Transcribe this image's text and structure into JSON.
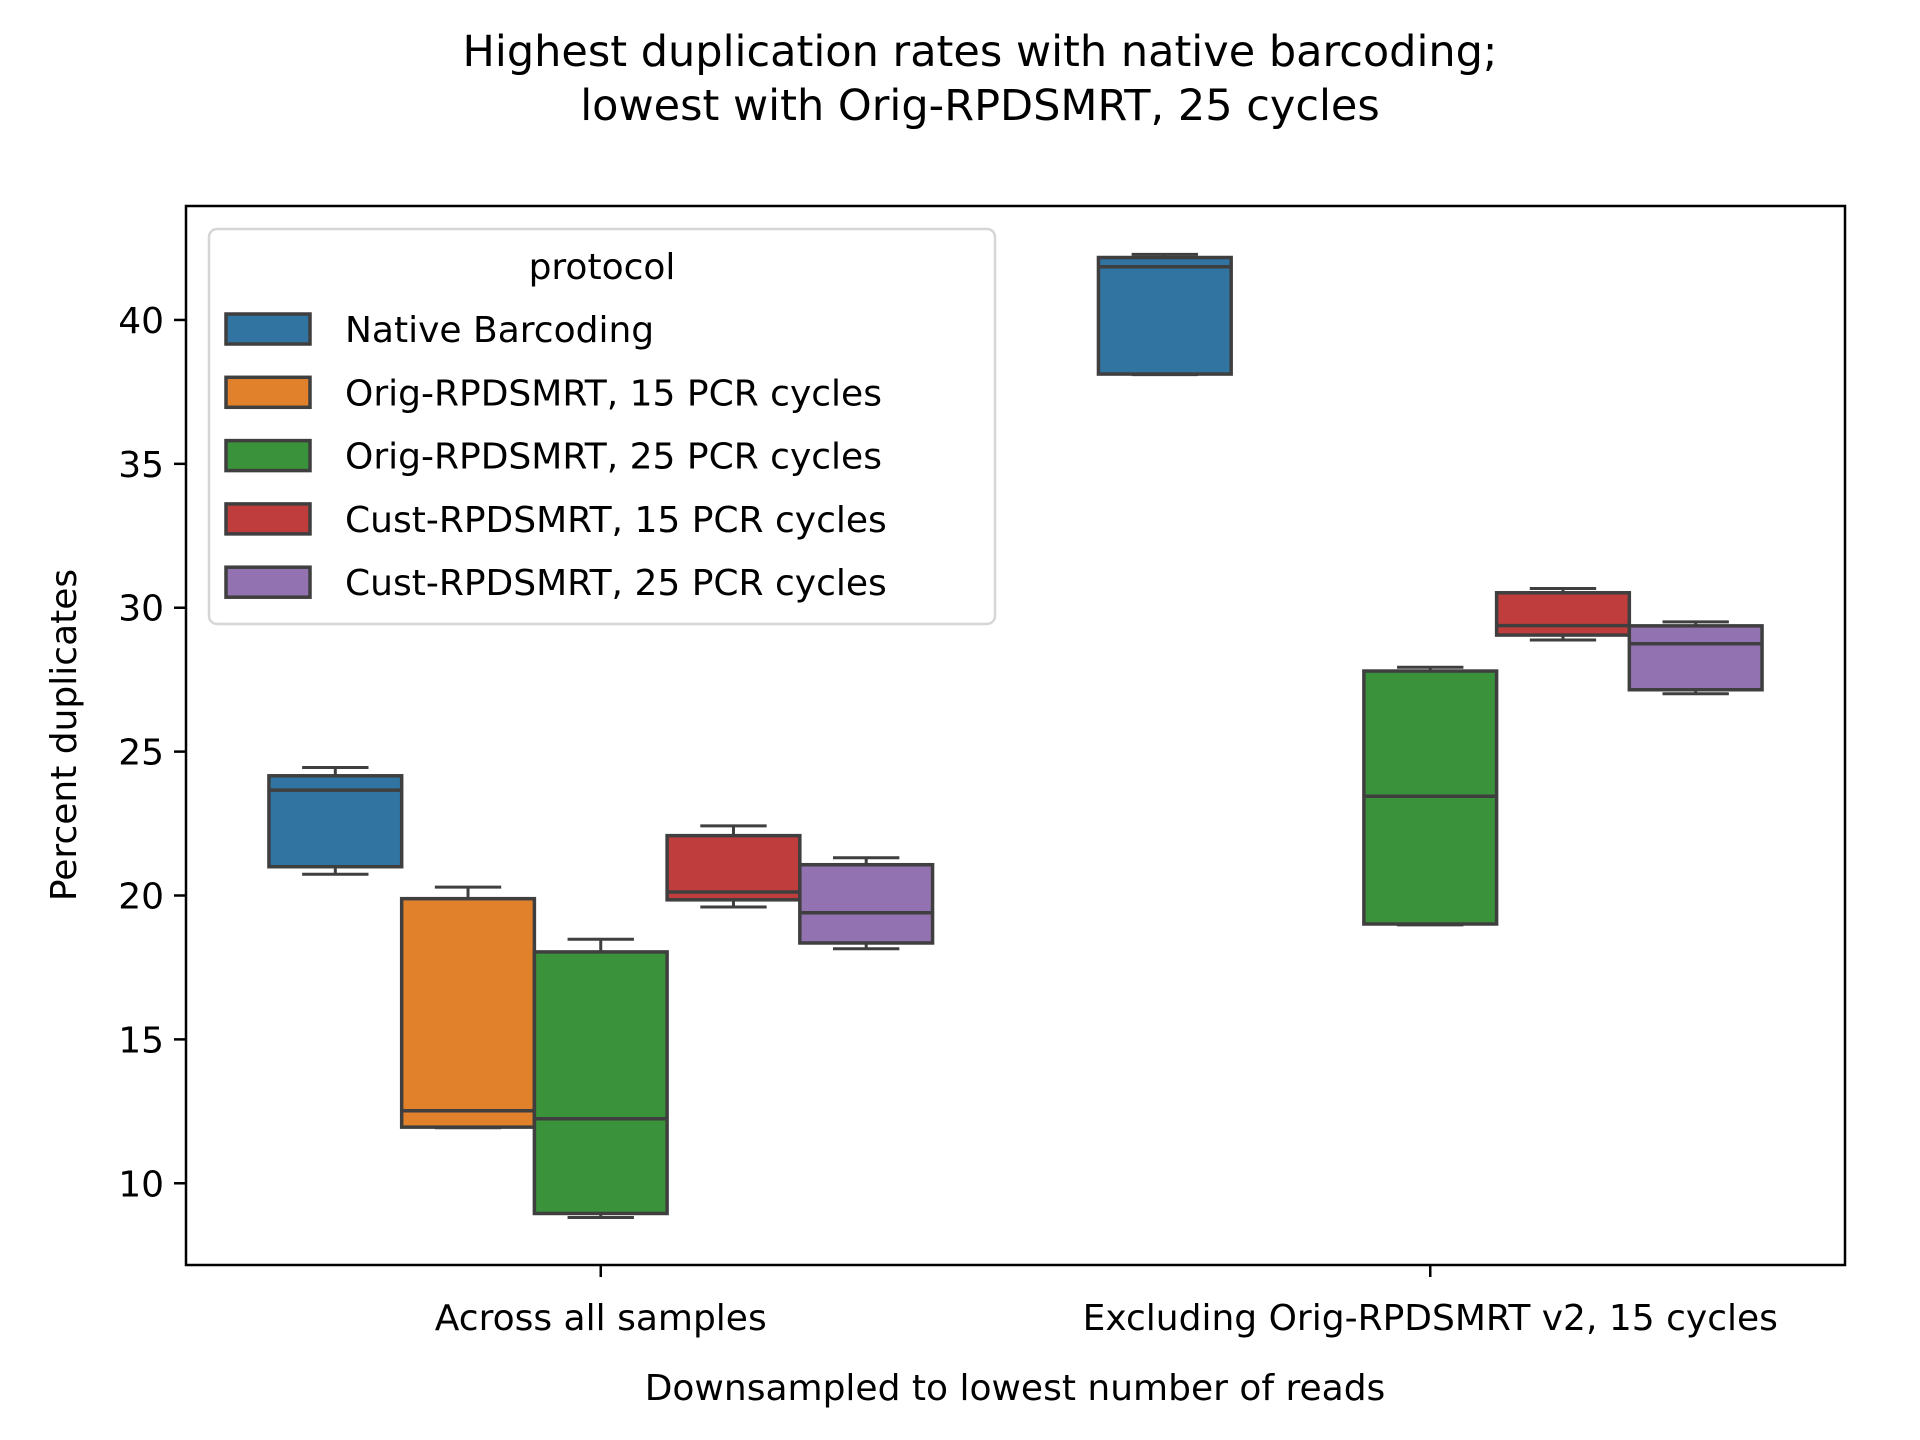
{
  "chart_data": {
    "type": "box",
    "title": [
      "Highest duplication rates with native barcoding;",
      "lowest with Orig-RPDSMRT, 25 cycles"
    ],
    "xlabel": "Downsampled to lowest number of reads",
    "ylabel": "Percent duplicates",
    "categories": [
      "Across all samples",
      "Excluding Orig-RPDSMRT v2, 15 cycles"
    ],
    "ylim": [
      7.16,
      43.96
    ],
    "yticks": [
      10,
      15,
      20,
      25,
      30,
      35,
      40
    ],
    "grid": false,
    "legend": {
      "title": "protocol",
      "placement": "top-left"
    },
    "series": [
      {
        "name": "Native Barcoding",
        "color": "#3274a1",
        "boxes": [
          {
            "category": "Across all samples",
            "whislo": 20.74,
            "q1": 21.0,
            "med": 23.66,
            "q3": 24.16,
            "whishi": 24.45
          },
          {
            "category": "Excluding Orig-RPDSMRT v2, 15 cycles",
            "whislo": 38.1,
            "q1": 38.12,
            "med": 41.85,
            "q3": 42.17,
            "whishi": 42.28
          }
        ]
      },
      {
        "name": "Orig-RPDSMRT, 15 PCR cycles",
        "color": "#e1812c",
        "boxes": [
          {
            "category": "Across all samples",
            "whislo": 11.93,
            "q1": 11.95,
            "med": 12.52,
            "q3": 19.89,
            "whishi": 20.29
          },
          null
        ]
      },
      {
        "name": "Orig-RPDSMRT, 25 PCR cycles",
        "color": "#3a923a",
        "boxes": [
          {
            "category": "Across all samples",
            "whislo": 8.81,
            "q1": 8.95,
            "med": 12.24,
            "q3": 18.04,
            "whishi": 18.48
          },
          {
            "category": "Excluding Orig-RPDSMRT v2, 15 cycles",
            "whislo": 18.98,
            "q1": 19.01,
            "med": 23.45,
            "q3": 27.8,
            "whishi": 27.93
          }
        ]
      },
      {
        "name": "Cust-RPDSMRT, 15 PCR cycles",
        "color": "#c03d3e",
        "boxes": [
          {
            "category": "Across all samples",
            "whislo": 19.6,
            "q1": 19.85,
            "med": 20.12,
            "q3": 22.08,
            "whishi": 22.42
          },
          {
            "category": "Excluding Orig-RPDSMRT v2, 15 cycles",
            "whislo": 28.88,
            "q1": 29.05,
            "med": 29.38,
            "q3": 30.52,
            "whishi": 30.67
          }
        ]
      },
      {
        "name": "Cust-RPDSMRT, 25 PCR cycles",
        "color": "#9372b2",
        "boxes": [
          {
            "category": "Across all samples",
            "whislo": 18.15,
            "q1": 18.35,
            "med": 19.4,
            "q3": 21.07,
            "whishi": 21.31
          },
          {
            "category": "Excluding Orig-RPDSMRT v2, 15 cycles",
            "whislo": 27.01,
            "q1": 27.15,
            "med": 28.75,
            "q3": 29.37,
            "whishi": 29.51
          }
        ]
      }
    ],
    "box_edge_color": "#3f3f3f"
  }
}
